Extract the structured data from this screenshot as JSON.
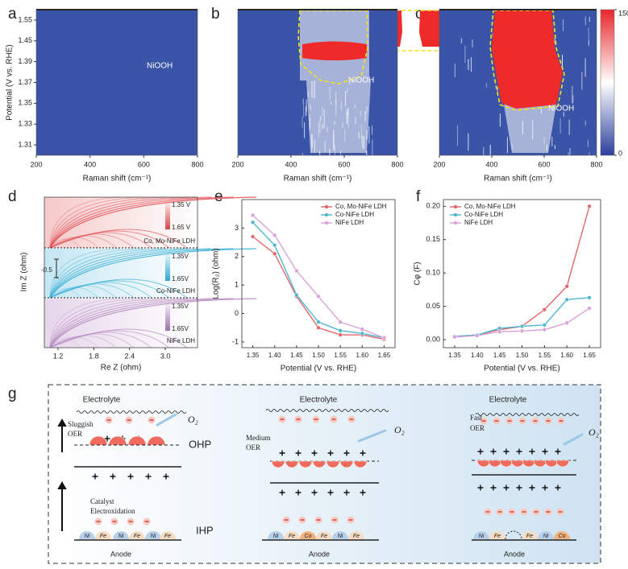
{
  "panel_labels": [
    "a",
    "b",
    "c",
    "d",
    "e",
    "f",
    "g"
  ],
  "chart_data": [
    {
      "type": "heatmap",
      "y_label": "Potential (V vs. RHE)",
      "x_label": "Raman shift (cm⁻¹)",
      "xlim": [
        200,
        800
      ],
      "xticks": [
        200,
        400,
        600,
        800
      ],
      "y_categories": [
        1.55,
        1.45,
        1.39,
        1.37,
        1.35,
        1.33,
        1.31
      ],
      "annotation": "NiOOH"
    },
    {
      "type": "heatmap",
      "x_label": "Raman shift (cm⁻¹)",
      "xlim": [
        200,
        800
      ],
      "xticks": [
        200,
        400,
        600,
        800
      ],
      "annotation": "NiOOH"
    },
    {
      "type": "heatmap",
      "x_label": "Raman shift (cm⁻¹)",
      "xlim": [
        200,
        800
      ],
      "xticks": [
        200,
        400,
        600,
        800
      ],
      "annotation": "NiOOH",
      "colorbar": {
        "lim": [
          0,
          150
        ],
        "ticks": [
          0,
          150
        ]
      }
    },
    {
      "type": "nyquist",
      "x_label": "Re Z (ohm)",
      "y_label": "Im Z (ohm)",
      "xlim": [
        0.97,
        3.54
      ],
      "xticks": [
        1.2,
        1.8,
        2.4,
        {
          "value": 3,
          "label": "3.0"
        }
      ],
      "scale_bar": "-0.5",
      "series": [
        {
          "name": "Co, Mo-NiFe LDH",
          "color": "#e0545a",
          "potentials": [
            "1.35 V",
            "1.65 V"
          ]
        },
        {
          "name": "Co-NiFe LDH",
          "color": "#3bb0d6",
          "potentials": [
            "1.35V",
            "1.65V"
          ]
        },
        {
          "name": "NiFe LDH",
          "color": "#b58ac0",
          "potentials": [
            "1.35V",
            "1.65V"
          ]
        }
      ]
    },
    {
      "type": "line",
      "x_label": "Potential (V vs. RHE)",
      "y_label": "Log(R₂) (ohm)",
      "categories": [
        "1.35",
        "1.40",
        "1.45",
        "1.50",
        "1.55",
        "1.60",
        "1.65"
      ],
      "ylim": [
        -1.2,
        4.0
      ],
      "yticks": [
        -1,
        0,
        1,
        2,
        3
      ],
      "legend": "top-right",
      "series": [
        {
          "name": "Co, Mo-NiFe LDH",
          "color": "#e0676b",
          "values": [
            2.7,
            2.1,
            0.6,
            -0.5,
            -0.75,
            -0.75,
            -0.9
          ]
        },
        {
          "name": "Co-NiFe LDH",
          "color": "#4db6d0",
          "values": [
            3.2,
            2.4,
            0.65,
            -0.3,
            -0.6,
            -0.7,
            -0.85
          ]
        },
        {
          "name": "NiFe LDH",
          "color": "#d9a3d6",
          "values": [
            3.45,
            2.75,
            1.5,
            0.6,
            -0.3,
            -0.55,
            -0.85
          ]
        }
      ]
    },
    {
      "type": "line",
      "x_label": "Potential (V vs. RHE)",
      "y_label": "Cφ (F)",
      "categories": [
        "1.35",
        "1.40",
        "1.45",
        "1.50",
        "1.55",
        "1.60",
        "1.65"
      ],
      "ylim": [
        -0.012,
        0.21
      ],
      "yticks": [
        {
          "value": 0,
          "label": "0.00"
        },
        {
          "value": 0.05,
          "label": "0.05"
        },
        {
          "value": 0.1,
          "label": "0.10"
        },
        {
          "value": 0.15,
          "label": "0.15"
        },
        {
          "value": 0.2,
          "label": "0.20"
        }
      ],
      "legend": "top-left",
      "series": [
        {
          "name": "Co, Mo-NiFe LDH",
          "color": "#e0676b",
          "values": [
            0.005,
            0.007,
            0.015,
            0.02,
            0.045,
            0.08,
            0.2
          ]
        },
        {
          "name": "Co-NiFe LDH",
          "color": "#4db6d0",
          "values": [
            0.005,
            0.007,
            0.017,
            0.02,
            0.022,
            0.06,
            0.063
          ]
        },
        {
          "name": "NiFe LDH",
          "color": "#d9a3d6",
          "values": [
            0.004,
            0.006,
            0.012,
            0.013,
            0.015,
            0.025,
            0.047
          ]
        }
      ]
    }
  ],
  "diagram": {
    "ohp": "OHP",
    "ihp": "IHP",
    "catalyst": [
      "Catalyst",
      "Electroxidation"
    ],
    "sections": [
      {
        "electrolyte": "Electrolyte",
        "rate": [
          "Sluggish",
          "OER"
        ],
        "o2": "O₂",
        "anode": "Anode",
        "atoms": [
          "Ni",
          "Fe",
          "Ni",
          "Fe",
          "Ni",
          "Fe"
        ]
      },
      {
        "electrolyte": "Electrolyte",
        "rate": [
          "Medium",
          "OER"
        ],
        "o2": "O₂",
        "anode": "Anode",
        "atoms": [
          "Ni",
          "Fe",
          "Co",
          "Fe",
          "Ni",
          "Fe"
        ]
      },
      {
        "electrolyte": "Electrolyte",
        "rate": [
          "Fast",
          "OER"
        ],
        "o2": "O₂",
        "anode": "Anode",
        "atoms": [
          "Ni",
          "Fe",
          "Fe",
          "Ni",
          "Co"
        ]
      }
    ]
  }
}
